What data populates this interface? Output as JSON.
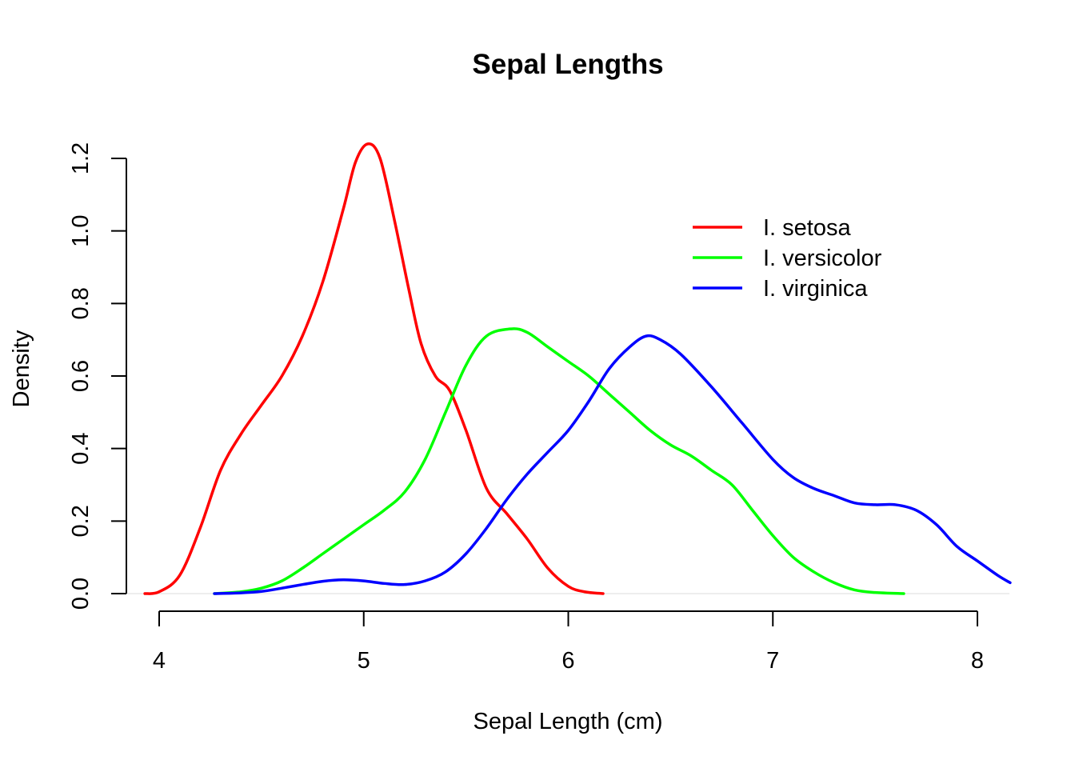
{
  "chart_data": {
    "type": "line",
    "title": "Sepal Lengths",
    "xlabel": "Sepal Length (cm)",
    "ylabel": "Density",
    "xlim": [
      3.96,
      8.16
    ],
    "ylim": [
      0,
      1.24
    ],
    "xticks": [
      4,
      5,
      6,
      7,
      8
    ],
    "xtick_labels": [
      "4",
      "5",
      "6",
      "7",
      "8"
    ],
    "yticks": [
      0,
      0.2,
      0.4,
      0.6,
      0.8,
      1.0,
      1.2
    ],
    "ytick_labels": [
      "0.0",
      "0.2",
      "0.4",
      "0.6",
      "0.8",
      "1.0",
      "1.2"
    ],
    "grid": false,
    "legend_position": "top-right",
    "series": [
      {
        "name": "I. setosa",
        "color": "#ff0000",
        "points": [
          [
            3.93,
            0.0
          ],
          [
            4.0,
            0.005
          ],
          [
            4.1,
            0.05
          ],
          [
            4.2,
            0.18
          ],
          [
            4.3,
            0.34
          ],
          [
            4.4,
            0.44
          ],
          [
            4.5,
            0.52
          ],
          [
            4.6,
            0.6
          ],
          [
            4.7,
            0.71
          ],
          [
            4.8,
            0.86
          ],
          [
            4.9,
            1.06
          ],
          [
            4.96,
            1.19
          ],
          [
            5.02,
            1.24
          ],
          [
            5.08,
            1.2
          ],
          [
            5.15,
            1.03
          ],
          [
            5.22,
            0.84
          ],
          [
            5.28,
            0.69
          ],
          [
            5.35,
            0.6
          ],
          [
            5.42,
            0.56
          ],
          [
            5.5,
            0.45
          ],
          [
            5.6,
            0.29
          ],
          [
            5.7,
            0.22
          ],
          [
            5.8,
            0.15
          ],
          [
            5.9,
            0.07
          ],
          [
            6.0,
            0.02
          ],
          [
            6.08,
            0.005
          ],
          [
            6.17,
            0.0
          ]
        ]
      },
      {
        "name": "I. versicolor",
        "color": "#00ff00",
        "points": [
          [
            4.27,
            0.0
          ],
          [
            4.4,
            0.005
          ],
          [
            4.5,
            0.015
          ],
          [
            4.6,
            0.035
          ],
          [
            4.7,
            0.07
          ],
          [
            4.8,
            0.11
          ],
          [
            4.9,
            0.15
          ],
          [
            5.0,
            0.19
          ],
          [
            5.1,
            0.23
          ],
          [
            5.2,
            0.28
          ],
          [
            5.3,
            0.37
          ],
          [
            5.4,
            0.5
          ],
          [
            5.5,
            0.63
          ],
          [
            5.6,
            0.71
          ],
          [
            5.72,
            0.73
          ],
          [
            5.8,
            0.72
          ],
          [
            5.9,
            0.68
          ],
          [
            6.0,
            0.64
          ],
          [
            6.1,
            0.6
          ],
          [
            6.2,
            0.55
          ],
          [
            6.3,
            0.5
          ],
          [
            6.4,
            0.45
          ],
          [
            6.5,
            0.41
          ],
          [
            6.6,
            0.38
          ],
          [
            6.7,
            0.34
          ],
          [
            6.8,
            0.3
          ],
          [
            6.9,
            0.23
          ],
          [
            7.0,
            0.16
          ],
          [
            7.1,
            0.1
          ],
          [
            7.2,
            0.06
          ],
          [
            7.3,
            0.03
          ],
          [
            7.4,
            0.01
          ],
          [
            7.5,
            0.003
          ],
          [
            7.64,
            0.0
          ]
        ]
      },
      {
        "name": "I. virginica",
        "color": "#0000ff",
        "points": [
          [
            4.27,
            0.0
          ],
          [
            4.4,
            0.002
          ],
          [
            4.5,
            0.006
          ],
          [
            4.6,
            0.015
          ],
          [
            4.7,
            0.025
          ],
          [
            4.8,
            0.034
          ],
          [
            4.9,
            0.038
          ],
          [
            5.0,
            0.035
          ],
          [
            5.1,
            0.028
          ],
          [
            5.2,
            0.025
          ],
          [
            5.3,
            0.035
          ],
          [
            5.4,
            0.06
          ],
          [
            5.5,
            0.11
          ],
          [
            5.6,
            0.18
          ],
          [
            5.7,
            0.26
          ],
          [
            5.8,
            0.33
          ],
          [
            5.9,
            0.39
          ],
          [
            6.0,
            0.45
          ],
          [
            6.1,
            0.53
          ],
          [
            6.2,
            0.62
          ],
          [
            6.3,
            0.68
          ],
          [
            6.38,
            0.71
          ],
          [
            6.45,
            0.7
          ],
          [
            6.55,
            0.66
          ],
          [
            6.7,
            0.57
          ],
          [
            6.85,
            0.47
          ],
          [
            7.0,
            0.37
          ],
          [
            7.1,
            0.32
          ],
          [
            7.2,
            0.29
          ],
          [
            7.3,
            0.27
          ],
          [
            7.4,
            0.25
          ],
          [
            7.5,
            0.245
          ],
          [
            7.6,
            0.245
          ],
          [
            7.7,
            0.23
          ],
          [
            7.8,
            0.19
          ],
          [
            7.9,
            0.13
          ],
          [
            8.0,
            0.09
          ],
          [
            8.1,
            0.05
          ],
          [
            8.16,
            0.03
          ]
        ]
      }
    ]
  }
}
